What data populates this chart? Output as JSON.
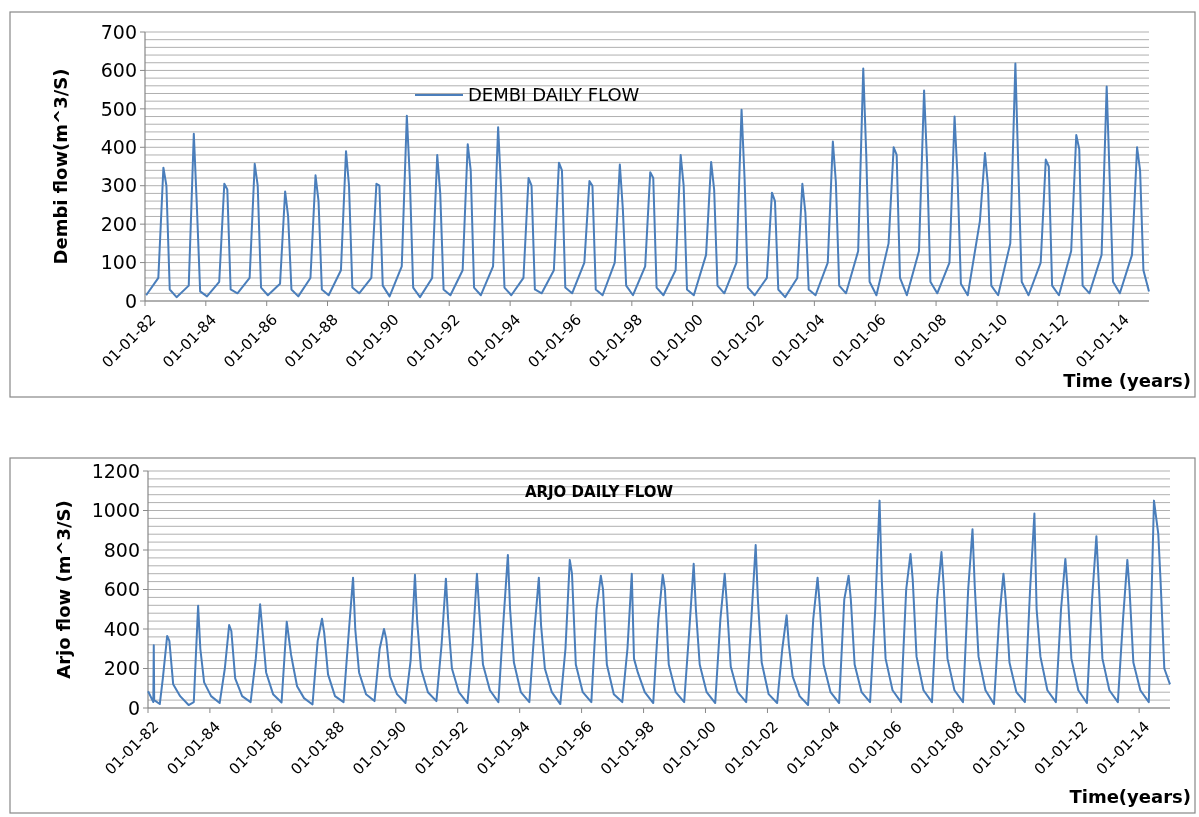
{
  "chart_data": [
    {
      "type": "line",
      "ylabel": "Dembi  flow(m^3/S)",
      "xlabel": "Time (years)",
      "legend": "top",
      "grid": "y",
      "xlim": [
        "1982-01-01",
        "2014-12-31"
      ],
      "ylim": [
        0,
        700
      ],
      "xticks": [
        {
          "value": "1982-01-01",
          "label": "01-01-82"
        },
        {
          "value": "1984-01-01",
          "label": "01-01-84"
        },
        {
          "value": "1986-01-01",
          "label": "01-01-86"
        },
        {
          "value": "1988-01-01",
          "label": "01-01-88"
        },
        {
          "value": "1990-01-01",
          "label": "01-01-90"
        },
        {
          "value": "1992-01-01",
          "label": "01-01-92"
        },
        {
          "value": "1994-01-01",
          "label": "01-01-94"
        },
        {
          "value": "1996-01-01",
          "label": "01-01-96"
        },
        {
          "value": "1998-01-01",
          "label": "01-01-98"
        },
        {
          "value": "2000-01-01",
          "label": "01-01-00"
        },
        {
          "value": "2002-01-01",
          "label": "01-01-02"
        },
        {
          "value": "2004-01-01",
          "label": "01-01-04"
        },
        {
          "value": "2006-01-01",
          "label": "01-01-06"
        },
        {
          "value": "2008-01-01",
          "label": "01-01-08"
        },
        {
          "value": "2010-01-01",
          "label": "01-01-10"
        },
        {
          "value": "2012-01-01",
          "label": "01-01-12"
        },
        {
          "value": "2014-01-01",
          "label": "01-01-14"
        }
      ],
      "yticks": [
        0,
        {
          "value": 20,
          "label": null
        },
        {
          "value": 40,
          "label": null
        },
        {
          "value": 60,
          "label": null
        },
        {
          "value": 80,
          "label": null
        },
        100,
        {
          "value": 120,
          "label": null
        },
        {
          "value": 140,
          "label": null
        },
        {
          "value": 160,
          "label": null
        },
        {
          "value": 180,
          "label": null
        },
        200,
        {
          "value": 220,
          "label": null
        },
        {
          "value": 240,
          "label": null
        },
        {
          "value": 260,
          "label": null
        },
        {
          "value": 280,
          "label": null
        },
        300,
        {
          "value": 320,
          "label": null
        },
        {
          "value": 340,
          "label": null
        },
        {
          "value": 360,
          "label": null
        },
        {
          "value": 380,
          "label": null
        },
        400,
        {
          "value": 420,
          "label": null
        },
        {
          "value": 440,
          "label": null
        },
        {
          "value": 460,
          "label": null
        },
        {
          "value": 480,
          "label": null
        },
        500,
        {
          "value": 520,
          "label": null
        },
        {
          "value": 540,
          "label": null
        },
        {
          "value": 560,
          "label": null
        },
        {
          "value": 580,
          "label": null
        },
        600,
        {
          "value": 620,
          "label": null
        },
        {
          "value": 640,
          "label": null
        },
        {
          "value": 660,
          "label": null
        },
        {
          "value": 680,
          "label": null
        },
        700
      ],
      "series": [
        {
          "name": "DEMBI DAILY FLOW",
          "color": "#4a7ebb",
          "x": [
            "1982-01-15",
            "1982-06-10",
            "1982-08-10",
            "1982-09-15",
            "1982-10-25",
            "1983-01-15",
            "1983-06-10",
            "1983-08-10",
            "1983-09-15",
            "1983-10-25",
            "1984-01-15",
            "1984-06-10",
            "1984-08-10",
            "1984-09-15",
            "1984-10-25",
            "1985-01-15",
            "1985-06-10",
            "1985-08-10",
            "1985-09-15",
            "1985-10-25",
            "1986-01-15",
            "1986-06-10",
            "1986-08-10",
            "1986-09-15",
            "1986-10-25",
            "1987-01-15",
            "1987-06-10",
            "1987-08-10",
            "1987-09-15",
            "1987-10-25",
            "1988-01-15",
            "1988-06-10",
            "1988-08-10",
            "1988-09-15",
            "1988-10-25",
            "1989-01-15",
            "1989-06-10",
            "1989-08-10",
            "1989-09-15",
            "1989-10-25",
            "1990-01-15",
            "1990-06-10",
            "1990-08-10",
            "1990-09-15",
            "1990-10-25",
            "1991-01-15",
            "1991-06-10",
            "1991-08-10",
            "1991-09-15",
            "1991-10-25",
            "1992-01-15",
            "1992-06-10",
            "1992-08-10",
            "1992-09-15",
            "1992-10-25",
            "1993-01-15",
            "1993-06-10",
            "1993-08-10",
            "1993-09-15",
            "1993-10-25",
            "1994-01-15",
            "1994-06-10",
            "1994-08-10",
            "1994-09-15",
            "1994-10-25",
            "1995-01-15",
            "1995-06-10",
            "1995-08-10",
            "1995-09-15",
            "1995-10-25",
            "1996-01-15",
            "1996-06-10",
            "1996-08-10",
            "1996-09-15",
            "1996-10-25",
            "1997-01-15",
            "1997-06-10",
            "1997-08-10",
            "1997-09-15",
            "1997-10-25",
            "1998-01-15",
            "1998-06-10",
            "1998-08-10",
            "1998-09-15",
            "1998-10-25",
            "1999-01-15",
            "1999-06-10",
            "1999-08-10",
            "1999-09-15",
            "1999-10-25",
            "2000-01-15",
            "2000-06-10",
            "2000-08-10",
            "2000-09-15",
            "2000-10-25",
            "2001-01-15",
            "2001-06-10",
            "2001-08-10",
            "2001-09-15",
            "2001-10-25",
            "2002-01-15",
            "2002-06-10",
            "2002-08-10",
            "2002-09-15",
            "2002-10-25",
            "2003-01-15",
            "2003-06-10",
            "2003-08-10",
            "2003-09-15",
            "2003-10-25",
            "2004-01-15",
            "2004-06-10",
            "2004-08-10",
            "2004-09-15",
            "2004-10-25",
            "2005-01-15",
            "2005-06-10",
            "2005-08-10",
            "2005-09-15",
            "2005-10-25",
            "2006-01-15",
            "2006-06-10",
            "2006-08-10",
            "2006-09-15",
            "2006-10-25",
            "2007-01-15",
            "2007-06-10",
            "2007-08-10",
            "2007-09-15",
            "2007-10-25",
            "2008-01-15",
            "2008-06-10",
            "2008-08-10",
            "2008-09-15",
            "2008-10-25",
            "2009-01-15",
            "2009-06-10",
            "2009-08-10",
            "2009-09-15",
            "2009-10-25",
            "2010-01-15",
            "2010-06-10",
            "2010-08-10",
            "2010-09-15",
            "2010-10-25",
            "2011-01-15",
            "2011-06-10",
            "2011-08-10",
            "2011-09-15",
            "2011-10-25",
            "2012-01-15",
            "2012-06-10",
            "2012-08-10",
            "2012-09-15",
            "2012-10-25",
            "2013-01-15",
            "2013-06-10",
            "2013-08-10",
            "2013-09-15",
            "2013-10-25",
            "2014-01-15",
            "2014-06-10",
            "2014-08-10",
            "2014-09-15",
            "2014-10-25",
            "2014-12-31"
          ],
          "values": [
            15,
            60,
            347,
            300,
            30,
            10,
            40,
            435,
            250,
            25,
            12,
            50,
            305,
            290,
            30,
            20,
            60,
            357,
            300,
            35,
            15,
            45,
            285,
            220,
            30,
            12,
            60,
            327,
            260,
            30,
            15,
            80,
            390,
            300,
            35,
            20,
            60,
            305,
            300,
            40,
            12,
            90,
            482,
            320,
            35,
            10,
            60,
            380,
            280,
            30,
            15,
            80,
            408,
            340,
            35,
            15,
            90,
            452,
            290,
            35,
            15,
            60,
            320,
            300,
            30,
            20,
            80,
            360,
            340,
            35,
            20,
            100,
            312,
            300,
            30,
            15,
            100,
            355,
            240,
            40,
            15,
            90,
            335,
            320,
            35,
            15,
            80,
            380,
            300,
            30,
            15,
            120,
            362,
            290,
            40,
            20,
            100,
            498,
            320,
            35,
            15,
            60,
            282,
            260,
            30,
            10,
            60,
            305,
            230,
            30,
            15,
            100,
            415,
            310,
            40,
            20,
            130,
            605,
            380,
            50,
            15,
            150,
            400,
            380,
            60,
            15,
            130,
            548,
            360,
            50,
            20,
            100,
            480,
            320,
            45,
            15,
            208,
            385,
            300,
            40,
            15,
            150,
            618,
            340,
            50,
            15,
            100,
            368,
            350,
            40,
            15,
            130,
            432,
            395,
            40,
            20,
            120,
            558,
            320,
            50,
            20,
            120,
            400,
            340,
            80,
            25
          ]
        }
      ]
    },
    {
      "type": "line",
      "title": "ARJO DAILY FLOW",
      "ylabel": "Arjo flow (m^3/S)",
      "xlabel": "Time(years)",
      "grid": "y",
      "xlim": [
        "1982-01-01",
        "2014-12-31"
      ],
      "ylim": [
        0,
        1200
      ],
      "xticks": [
        {
          "value": "1982-01-01",
          "label": "01-01-82"
        },
        {
          "value": "1984-01-01",
          "label": "01-01-84"
        },
        {
          "value": "1986-01-01",
          "label": "01-01-86"
        },
        {
          "value": "1988-01-01",
          "label": "01-01-88"
        },
        {
          "value": "1990-01-01",
          "label": "01-01-90"
        },
        {
          "value": "1992-01-01",
          "label": "01-01-92"
        },
        {
          "value": "1994-01-01",
          "label": "01-01-94"
        },
        {
          "value": "1996-01-01",
          "label": "01-01-96"
        },
        {
          "value": "1998-01-01",
          "label": "01-01-98"
        },
        {
          "value": "2000-01-01",
          "label": "01-01-00"
        },
        {
          "value": "2002-01-01",
          "label": "01-01-02"
        },
        {
          "value": "2004-01-01",
          "label": "01-01-04"
        },
        {
          "value": "2006-01-01",
          "label": "01-01-06"
        },
        {
          "value": "2008-01-01",
          "label": "01-01-08"
        },
        {
          "value": "2010-01-01",
          "label": "01-01-10"
        },
        {
          "value": "2012-01-01",
          "label": "01-01-12"
        },
        {
          "value": "2014-01-01",
          "label": "01-01-14"
        }
      ],
      "yticks": [
        0,
        {
          "value": 40,
          "label": null
        },
        {
          "value": 80,
          "label": null
        },
        {
          "value": 120,
          "label": null
        },
        {
          "value": 160,
          "label": null
        },
        200,
        {
          "value": 240,
          "label": null
        },
        {
          "value": 280,
          "label": null
        },
        {
          "value": 320,
          "label": null
        },
        {
          "value": 360,
          "label": null
        },
        400,
        {
          "value": 440,
          "label": null
        },
        {
          "value": 480,
          "label": null
        },
        {
          "value": 520,
          "label": null
        },
        {
          "value": 560,
          "label": null
        },
        600,
        {
          "value": 640,
          "label": null
        },
        {
          "value": 680,
          "label": null
        },
        {
          "value": 720,
          "label": null
        },
        {
          "value": 760,
          "label": null
        },
        800,
        {
          "value": 840,
          "label": null
        },
        {
          "value": 880,
          "label": null
        },
        {
          "value": 920,
          "label": null
        },
        {
          "value": 960,
          "label": null
        },
        1000,
        {
          "value": 1040,
          "label": null
        },
        {
          "value": 1080,
          "label": null
        },
        {
          "value": 1120,
          "label": null
        },
        {
          "value": 1160,
          "label": null
        },
        1200
      ],
      "series": [
        {
          "color": "#4a7ebb",
          "x": [
            "1982-01-02",
            "1982-03-05",
            "1982-03-10",
            "1982-03-15",
            "1982-05-20",
            "1982-06-25",
            "1982-08-15",
            "1982-09-10",
            "1982-10-25",
            "1983-01-15",
            "1983-04-25",
            "1983-06-25",
            "1983-08-15",
            "1983-09-10",
            "1983-10-25",
            "1984-01-15",
            "1984-04-25",
            "1984-06-25",
            "1984-08-15",
            "1984-09-10",
            "1984-10-25",
            "1985-01-15",
            "1985-04-25",
            "1985-06-25",
            "1985-08-15",
            "1985-09-10",
            "1985-10-25",
            "1986-01-15",
            "1986-04-25",
            "1986-06-25",
            "1986-08-15",
            "1986-09-10",
            "1986-10-25",
            "1987-01-15",
            "1987-04-25",
            "1987-06-25",
            "1987-08-15",
            "1987-09-10",
            "1987-10-25",
            "1988-01-15",
            "1988-04-25",
            "1988-06-25",
            "1988-08-15",
            "1988-09-10",
            "1988-10-25",
            "1989-01-15",
            "1989-04-25",
            "1989-06-25",
            "1989-08-15",
            "1989-09-10",
            "1989-10-25",
            "1990-01-15",
            "1990-04-25",
            "1990-06-25",
            "1990-08-15",
            "1990-09-10",
            "1990-10-25",
            "1991-01-15",
            "1991-04-25",
            "1991-06-25",
            "1991-08-15",
            "1991-09-10",
            "1991-10-25",
            "1992-01-15",
            "1992-04-25",
            "1992-06-25",
            "1992-08-15",
            "1992-09-10",
            "1992-10-25",
            "1993-01-15",
            "1993-04-25",
            "1993-06-25",
            "1993-08-15",
            "1993-09-10",
            "1993-10-25",
            "1994-01-15",
            "1994-04-25",
            "1994-06-25",
            "1994-08-15",
            "1994-09-10",
            "1994-10-25",
            "1995-01-15",
            "1995-04-25",
            "1995-06-25",
            "1995-08-15",
            "1995-09-10",
            "1995-10-25",
            "1996-01-15",
            "1996-04-25",
            "1996-06-25",
            "1996-08-15",
            "1996-09-10",
            "1996-10-25",
            "1997-01-15",
            "1997-04-25",
            "1997-06-25",
            "1997-08-15",
            "1997-09-10",
            "1997-10-25",
            "1998-01-15",
            "1998-04-25",
            "1998-06-25",
            "1998-08-15",
            "1998-09-10",
            "1998-10-25",
            "1999-01-15",
            "1999-04-25",
            "1999-06-25",
            "1999-08-15",
            "1999-09-10",
            "1999-10-25",
            "2000-01-15",
            "2000-04-25",
            "2000-06-25",
            "2000-08-15",
            "2000-09-10",
            "2000-10-25",
            "2001-01-15",
            "2001-04-25",
            "2001-06-25",
            "2001-08-15",
            "2001-09-10",
            "2001-10-25",
            "2002-01-15",
            "2002-04-25",
            "2002-06-25",
            "2002-08-15",
            "2002-09-10",
            "2002-10-25",
            "2003-01-15",
            "2003-04-25",
            "2003-06-25",
            "2003-08-15",
            "2003-09-10",
            "2003-10-25",
            "2004-01-15",
            "2004-04-25",
            "2004-06-25",
            "2004-08-15",
            "2004-09-10",
            "2004-10-25",
            "2005-01-15",
            "2005-04-25",
            "2005-06-25",
            "2005-08-15",
            "2005-09-10",
            "2005-10-25",
            "2006-01-15",
            "2006-04-25",
            "2006-06-25",
            "2006-08-15",
            "2006-09-10",
            "2006-10-25",
            "2007-01-15",
            "2007-04-25",
            "2007-06-25",
            "2007-08-15",
            "2007-09-10",
            "2007-10-25",
            "2008-01-15",
            "2008-04-25",
            "2008-06-25",
            "2008-08-15",
            "2008-09-10",
            "2008-10-25",
            "2009-01-15",
            "2009-04-25",
            "2009-06-25",
            "2009-08-15",
            "2009-09-10",
            "2009-10-25",
            "2010-01-15",
            "2010-04-25",
            "2010-06-25",
            "2010-08-15",
            "2010-09-10",
            "2010-10-25",
            "2011-01-15",
            "2011-04-25",
            "2011-06-25",
            "2011-08-15",
            "2011-09-10",
            "2011-10-25",
            "2012-01-15",
            "2012-04-25",
            "2012-06-25",
            "2012-08-15",
            "2012-09-10",
            "2012-10-25",
            "2013-01-15",
            "2013-04-25",
            "2013-06-25",
            "2013-08-15",
            "2013-09-10",
            "2013-10-25",
            "2014-01-15",
            "2014-04-25",
            "2014-06-25",
            "2014-08-15",
            "2014-09-10",
            "2014-10-25",
            "2014-12-31"
          ],
          "values": [
            85,
            30,
            318,
            40,
            20,
            150,
            365,
            340,
            120,
            60,
            15,
            30,
            518,
            300,
            130,
            60,
            25,
            200,
            420,
            390,
            150,
            60,
            30,
            250,
            525,
            400,
            180,
            70,
            28,
            437,
            270,
            210,
            110,
            50,
            18,
            340,
            452,
            380,
            170,
            60,
            30,
            380,
            660,
            400,
            180,
            70,
            35,
            300,
            400,
            350,
            160,
            70,
            25,
            240,
            675,
            440,
            200,
            80,
            35,
            320,
            655,
            450,
            200,
            80,
            25,
            320,
            680,
            500,
            220,
            90,
            30,
            450,
            775,
            500,
            230,
            80,
            30,
            400,
            660,
            420,
            200,
            80,
            20,
            300,
            750,
            680,
            220,
            80,
            30,
            500,
            670,
            600,
            220,
            70,
            30,
            300,
            680,
            250,
            180,
            80,
            25,
            450,
            675,
            600,
            220,
            80,
            30,
            400,
            730,
            500,
            220,
            80,
            25,
            450,
            680,
            520,
            210,
            80,
            30,
            450,
            825,
            550,
            230,
            70,
            25,
            300,
            470,
            320,
            160,
            60,
            15,
            450,
            660,
            520,
            220,
            80,
            25,
            550,
            670,
            550,
            220,
            80,
            30,
            500,
            1050,
            650,
            250,
            90,
            30,
            600,
            780,
            650,
            260,
            90,
            30,
            550,
            790,
            620,
            250,
            90,
            30,
            600,
            905,
            620,
            260,
            90,
            20,
            450,
            680,
            550,
            230,
            80,
            30,
            600,
            985,
            500,
            260,
            90,
            30,
            500,
            755,
            600,
            250,
            90,
            25,
            550,
            870,
            650,
            250,
            90,
            30,
            450,
            750,
            600,
            230,
            90,
            30,
            1050,
            880,
            650,
            200,
            120
          ]
        }
      ]
    }
  ]
}
